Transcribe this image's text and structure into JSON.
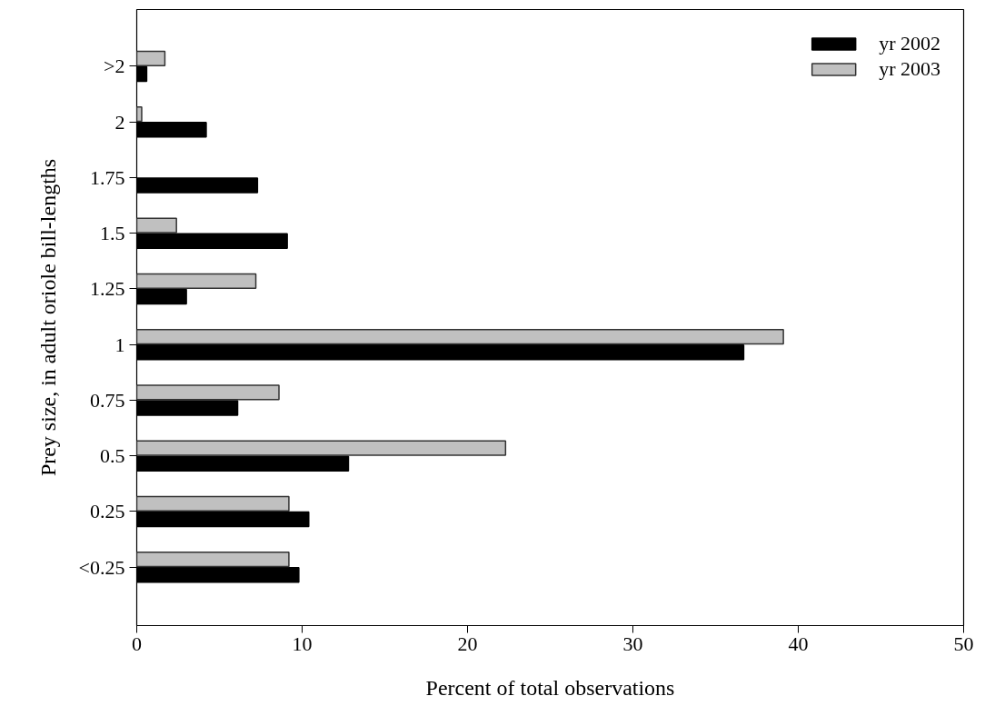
{
  "chart_data": {
    "type": "bar",
    "orientation": "horizontal",
    "xlabel": "Percent of total observations",
    "ylabel": "Prey size, in adult oriole bill-lengths",
    "categories": [
      ">2",
      "2",
      "1.75",
      "1.5",
      "1.25",
      "1",
      "0.75",
      "0.5",
      "0.25",
      "<0.25"
    ],
    "series": [
      {
        "name": "yr 2002",
        "color": "#000000",
        "values": [
          0.6,
          4.2,
          7.3,
          9.1,
          3.0,
          36.7,
          6.1,
          12.8,
          10.4,
          9.8
        ]
      },
      {
        "name": "yr 2003",
        "color": "#c0c0c0",
        "values": [
          1.7,
          0.3,
          null,
          2.4,
          7.2,
          39.1,
          8.6,
          22.3,
          9.2,
          9.2
        ]
      }
    ],
    "xlim": [
      0,
      50
    ],
    "xticks": [
      0,
      10,
      20,
      30,
      40,
      50
    ],
    "grid": false,
    "legend": "top right"
  }
}
